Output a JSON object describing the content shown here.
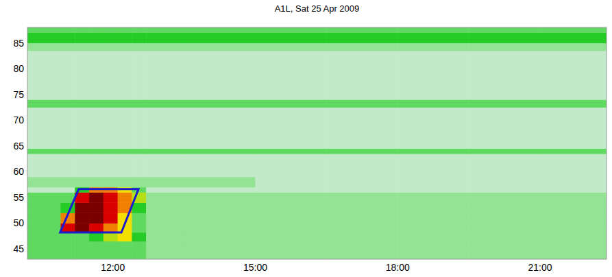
{
  "chart_data": {
    "type": "heatmap",
    "title": "A1L, Sat 25 Apr 2009",
    "xlim": [
      10.2,
      22.4
    ],
    "ylim": [
      43,
      88
    ],
    "xticks": [
      {
        "value": 12,
        "label": "12:00"
      },
      {
        "value": 15,
        "label": "15:00"
      },
      {
        "value": 18,
        "label": "18:00"
      },
      {
        "value": 21,
        "label": "21:00"
      }
    ],
    "yticks": [
      45,
      50,
      55,
      60,
      65,
      70,
      75,
      80,
      85
    ],
    "grid": false,
    "zlim": [
      0,
      10
    ],
    "x_edges": [
      10.2,
      10.9,
      11.2,
      11.5,
      11.8,
      12.1,
      12.4,
      12.7,
      13.5,
      15,
      16.5,
      18,
      19.5,
      21,
      22.4
    ],
    "y_edges": [
      43,
      45,
      46.5,
      48.2,
      50,
      52,
      54,
      56,
      57,
      59,
      63.5,
      64.5,
      72.5,
      74,
      83.5,
      85,
      87,
      88
    ],
    "cells": [
      [
        3,
        3,
        3,
        3,
        3,
        3,
        3,
        2,
        2,
        2,
        2,
        2,
        2,
        2
      ],
      [
        3,
        3,
        3,
        3,
        3,
        3,
        3,
        2,
        2,
        2,
        2,
        2,
        2,
        2
      ],
      [
        3,
        3,
        3,
        4,
        5,
        6,
        4,
        2,
        2,
        2,
        2,
        2,
        2,
        2
      ],
      [
        3,
        8,
        9,
        8,
        7,
        6,
        3,
        2,
        2,
        2,
        2,
        2,
        2,
        2
      ],
      [
        3,
        7,
        9,
        9,
        8,
        6,
        3,
        2,
        2,
        2,
        2,
        2,
        2,
        2
      ],
      [
        3,
        4,
        9,
        9,
        8,
        7,
        4,
        2,
        2,
        2,
        2,
        2,
        2,
        2
      ],
      [
        3,
        3,
        8,
        9,
        8,
        7,
        5,
        2,
        2,
        2,
        2,
        2,
        2,
        2
      ],
      [
        1,
        1,
        4,
        7,
        7,
        6,
        3,
        1,
        1,
        1,
        1,
        1,
        1,
        1
      ],
      [
        2,
        2,
        2,
        2,
        2,
        2,
        2,
        2,
        2,
        1,
        1,
        1,
        1,
        1
      ],
      [
        1,
        1,
        1,
        1,
        1,
        1,
        1,
        1,
        1,
        1,
        1,
        1,
        1,
        1
      ],
      [
        3,
        3,
        3,
        3,
        3,
        3,
        3,
        3,
        3,
        3,
        3,
        3,
        3,
        3
      ],
      [
        1,
        1,
        1,
        1,
        1,
        1,
        1,
        1,
        1,
        1,
        1,
        1,
        1,
        1
      ],
      [
        3,
        3,
        3,
        3,
        3,
        3,
        3,
        3,
        3,
        3,
        3,
        3,
        3,
        3
      ],
      [
        1,
        1,
        1,
        1,
        1,
        1,
        1,
        1,
        1,
        1,
        1,
        1,
        1,
        1
      ],
      [
        2,
        2,
        2,
        2,
        2,
        2,
        2,
        2,
        2,
        2,
        2,
        2,
        2,
        2
      ],
      [
        4,
        4,
        4,
        4,
        4,
        4,
        4,
        4,
        4,
        4,
        4,
        4,
        4,
        4
      ],
      [
        3,
        3,
        3,
        3,
        3,
        3,
        3,
        3,
        3,
        3,
        3,
        3,
        3,
        3
      ]
    ],
    "selection": {
      "x": [
        10.89,
        11.28,
        12.54,
        12.18
      ],
      "y": [
        48.2,
        56.6,
        56.6,
        48.2
      ],
      "color": "#1a1ad0"
    }
  }
}
